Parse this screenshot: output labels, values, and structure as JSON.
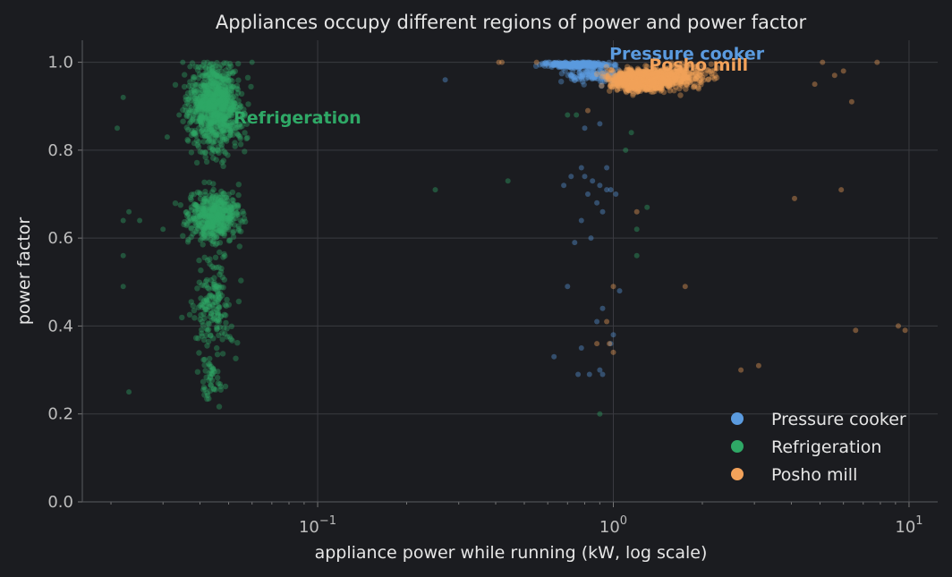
{
  "chart_data": {
    "type": "scatter",
    "title": "Appliances occupy different regions of power and power factor",
    "xlabel": "appliance power while running (kW, log scale)",
    "ylabel": "power factor",
    "xscale": "log",
    "xlim": [
      0.016,
      12.5
    ],
    "ylim": [
      0,
      1.05
    ],
    "x_ticks": [
      {
        "value": 0.1,
        "base": "10",
        "exp": "−1"
      },
      {
        "value": 1,
        "base": "10",
        "exp": "0"
      },
      {
        "value": 10,
        "base": "10",
        "exp": "1"
      }
    ],
    "y_ticks": [
      {
        "value": 0.0,
        "label": "0.0"
      },
      {
        "value": 0.2,
        "label": "0.2"
      },
      {
        "value": 0.4,
        "label": "0.4"
      },
      {
        "value": 0.6,
        "label": "0.6"
      },
      {
        "value": 0.8,
        "label": "0.8"
      },
      {
        "value": 1.0,
        "label": "1.0"
      }
    ],
    "grid": true,
    "legend_position": "bottom-right",
    "series": [
      {
        "name": "Refrigeration",
        "color": "#2fa866",
        "clusters": [
          {
            "x_center": 0.045,
            "x_spread": 0.1,
            "y_center": 0.9,
            "y_spread": 0.1,
            "count": 900
          },
          {
            "x_center": 0.045,
            "x_spread": 0.1,
            "y_center": 0.65,
            "y_spread": 0.06,
            "count": 500
          },
          {
            "x_center": 0.044,
            "x_spread": 0.08,
            "y_center": 0.45,
            "y_spread": 0.12,
            "count": 180
          },
          {
            "x_center": 0.044,
            "x_spread": 0.05,
            "y_center": 0.27,
            "y_spread": 0.05,
            "count": 40
          }
        ],
        "outliers": [
          [
            0.022,
            0.92
          ],
          [
            0.021,
            0.85
          ],
          [
            0.022,
            0.64
          ],
          [
            0.023,
            0.66
          ],
          [
            0.025,
            0.64
          ],
          [
            0.022,
            0.56
          ],
          [
            0.022,
            0.49
          ],
          [
            0.023,
            0.25
          ],
          [
            0.03,
            0.62
          ],
          [
            0.031,
            0.83
          ],
          [
            0.034,
            0.88
          ],
          [
            0.25,
            0.71
          ],
          [
            0.44,
            0.73
          ],
          [
            0.7,
            0.88
          ],
          [
            0.75,
            0.88
          ],
          [
            1.1,
            0.8
          ],
          [
            1.15,
            0.84
          ],
          [
            1.3,
            0.67
          ],
          [
            1.2,
            0.62
          ],
          [
            1.2,
            0.56
          ],
          [
            0.9,
            0.2
          ],
          [
            0.035,
            1.0
          ],
          [
            0.037,
            0.99
          ],
          [
            0.06,
            1.0
          ]
        ]
      },
      {
        "name": "Pressure cooker",
        "color": "#5b9bdf",
        "clusters": [
          {
            "x_center": 0.75,
            "x_spread": 0.12,
            "y_center": 0.995,
            "y_spread": 0.007,
            "count": 300
          },
          {
            "x_center": 0.85,
            "x_spread": 0.1,
            "y_center": 0.97,
            "y_spread": 0.02,
            "count": 120
          }
        ],
        "outliers": [
          [
            0.27,
            0.96
          ],
          [
            0.78,
            0.76
          ],
          [
            0.8,
            0.74
          ],
          [
            0.85,
            0.73
          ],
          [
            0.9,
            0.72
          ],
          [
            0.95,
            0.71
          ],
          [
            0.82,
            0.7
          ],
          [
            0.88,
            0.68
          ],
          [
            0.92,
            0.66
          ],
          [
            0.78,
            0.64
          ],
          [
            0.84,
            0.6
          ],
          [
            0.74,
            0.59
          ],
          [
            0.68,
            0.72
          ],
          [
            0.72,
            0.74
          ],
          [
            0.8,
            0.85
          ],
          [
            0.9,
            0.86
          ],
          [
            0.95,
            0.76
          ],
          [
            0.98,
            0.71
          ],
          [
            1.02,
            0.7
          ],
          [
            0.7,
            0.49
          ],
          [
            0.92,
            0.44
          ],
          [
            0.98,
            0.36
          ],
          [
            1.0,
            0.38
          ],
          [
            0.78,
            0.35
          ],
          [
            0.76,
            0.29
          ],
          [
            0.83,
            0.29
          ],
          [
            0.9,
            0.3
          ],
          [
            0.92,
            0.29
          ],
          [
            0.63,
            0.33
          ],
          [
            1.05,
            0.48
          ],
          [
            0.88,
            0.41
          ]
        ]
      },
      {
        "name": "Posho mill",
        "color": "#f2a25a",
        "clusters": [
          {
            "x_center": 1.25,
            "x_spread": 0.12,
            "y_center": 0.96,
            "y_spread": 0.025,
            "count": 900
          },
          {
            "x_center": 1.7,
            "x_spread": 0.12,
            "y_center": 0.97,
            "y_spread": 0.03,
            "count": 250
          }
        ],
        "outliers": [
          [
            0.41,
            1.0
          ],
          [
            0.42,
            1.0
          ],
          [
            0.55,
            1.0
          ],
          [
            4.8,
            0.95
          ],
          [
            5.1,
            1.0
          ],
          [
            5.6,
            0.97
          ],
          [
            6.0,
            0.98
          ],
          [
            6.4,
            0.91
          ],
          [
            7.8,
            1.0
          ],
          [
            4.1,
            0.69
          ],
          [
            5.9,
            0.71
          ],
          [
            6.6,
            0.39
          ],
          [
            9.2,
            0.4
          ],
          [
            9.7,
            0.39
          ],
          [
            2.7,
            0.3
          ],
          [
            3.1,
            0.31
          ],
          [
            1.75,
            0.49
          ],
          [
            1.0,
            0.49
          ],
          [
            1.2,
            0.66
          ],
          [
            0.82,
            0.89
          ],
          [
            0.95,
            0.41
          ],
          [
            0.97,
            0.36
          ],
          [
            1.0,
            0.34
          ],
          [
            0.88,
            0.36
          ]
        ]
      }
    ],
    "annotations": [
      {
        "text": "Pressure cooker",
        "x": 0.97,
        "y": 1.02,
        "series": "Pressure cooker"
      },
      {
        "text": "Posho mill",
        "x": 1.32,
        "y": 0.995,
        "series": "Posho mill"
      },
      {
        "text": "Refrigeration",
        "x": 0.052,
        "y": 0.875,
        "series": "Refrigeration"
      }
    ],
    "legend": [
      {
        "name": "Pressure cooker",
        "color": "#5b9bdf"
      },
      {
        "name": "Refrigeration",
        "color": "#2fa866"
      },
      {
        "name": "Posho mill",
        "color": "#f2a25a"
      }
    ]
  }
}
